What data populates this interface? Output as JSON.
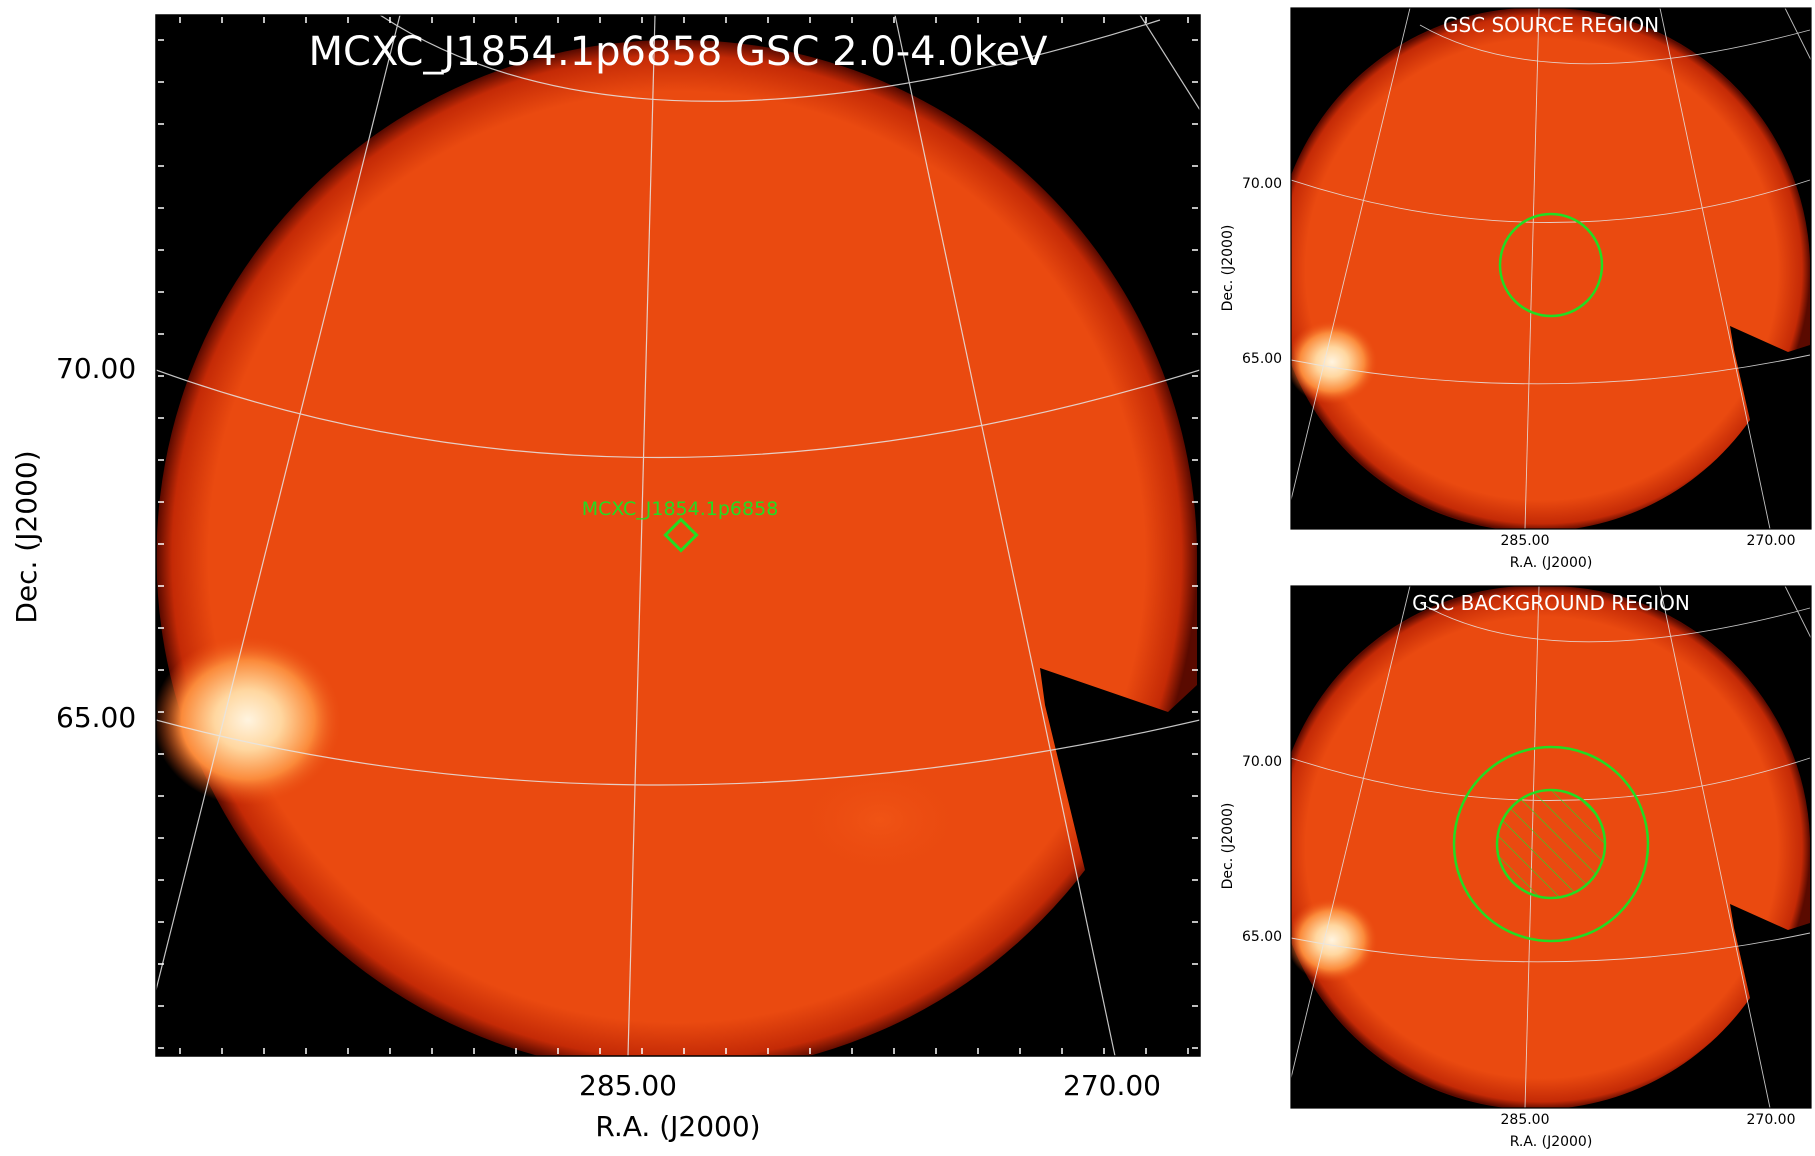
{
  "main": {
    "title": "MCXC_J1854.1p6858 GSC 2.0-4.0keV",
    "source_label": "MCXC_J1854.1p6858",
    "xlabel": "R.A. (J2000)",
    "ylabel": "Dec. (J2000)",
    "xticks": [
      "285.00",
      "270.00"
    ],
    "yticks": [
      "70.00",
      "65.00"
    ]
  },
  "source_panel": {
    "title": "GSC SOURCE REGION",
    "xlabel": "R.A. (J2000)",
    "ylabel": "Dec. (J2000)",
    "xticks": [
      "285.00",
      "270.00"
    ],
    "yticks": [
      "70.00",
      "65.00"
    ]
  },
  "background_panel": {
    "title": "GSC BACKGROUND REGION",
    "xlabel": "R.A. (J2000)",
    "ylabel": "Dec. (J2000)",
    "xticks": [
      "285.00",
      "270.00"
    ],
    "yticks": [
      "70.00",
      "65.00"
    ]
  },
  "colors": {
    "image_orange": "#ea4a10",
    "hot_spot": "#fff2d8",
    "region_green": "#22dd22",
    "grid": "#dddddd",
    "background": "#000000"
  }
}
